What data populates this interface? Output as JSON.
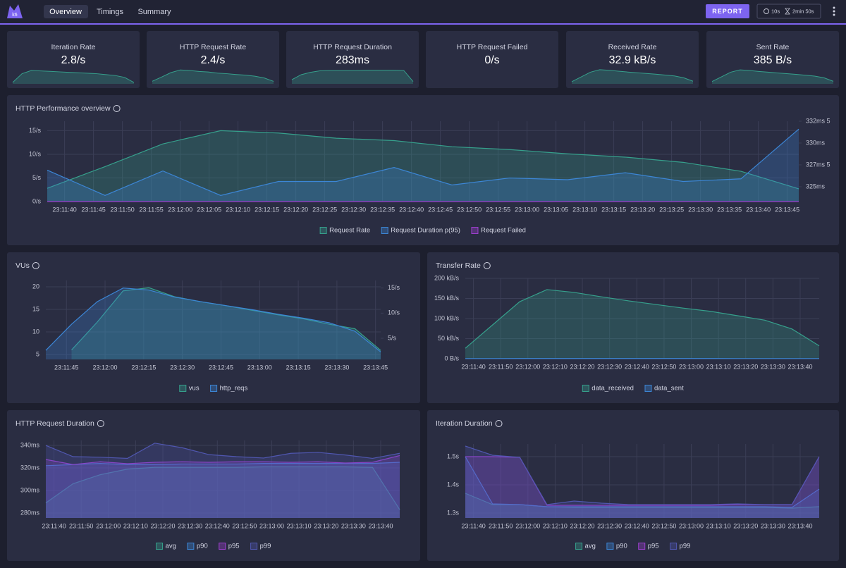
{
  "header": {
    "logo": "k6",
    "tabs": [
      "Overview",
      "Timings",
      "Summary"
    ],
    "report": "REPORT",
    "interval": "10s",
    "duration": "2min 50s"
  },
  "stats": [
    {
      "title": "Iteration Rate",
      "value": "2.8/s",
      "spark": [
        0.3,
        2.2,
        2.9,
        2.8,
        2.7,
        2.6,
        2.5,
        2.4,
        2.3,
        2.2,
        2.0,
        1.8,
        1.4,
        0.3
      ],
      "spark_ylim": [
        0,
        3.2
      ]
    },
    {
      "title": "HTTP Request Rate",
      "value": "2.4/s",
      "spark": [
        2.8,
        7.4,
        12.2,
        15,
        14.5,
        13.4,
        12.9,
        11.6,
        11,
        10.1,
        9.4,
        8.3,
        6.4,
        2.7
      ],
      "spark_ylim": [
        0,
        16
      ]
    },
    {
      "title": "HTTP Request Duration",
      "value": "283ms",
      "spark": [
        289,
        306,
        314,
        319,
        320,
        320,
        320,
        320,
        321,
        321,
        321,
        321,
        320,
        283
      ],
      "spark_ylim": [
        275,
        325
      ]
    },
    {
      "title": "HTTP Request Failed",
      "value": "0/s"
    },
    {
      "title": "Received Rate",
      "value": "32.9 kB/s",
      "spark": [
        26,
        84,
        142,
        172,
        165,
        154,
        144,
        135,
        126,
        118,
        107,
        96,
        74,
        32
      ],
      "spark_ylim": [
        0,
        180
      ]
    },
    {
      "title": "Sent Rate",
      "value": "385 B/s",
      "spark": [
        30,
        90,
        150,
        180,
        172,
        160,
        150,
        140,
        131,
        122,
        111,
        100,
        78,
        33
      ],
      "spark_ylim": [
        0,
        190
      ]
    }
  ],
  "charts": [
    {
      "type": "line",
      "title": "HTTP Performance overview",
      "grid": true,
      "x": [
        "23:11:37",
        "23:11:47",
        "23:11:57",
        "23:12:07",
        "23:12:17",
        "23:12:27",
        "23:12:37",
        "23:12:47",
        "23:12:57",
        "23:13:07",
        "23:13:17",
        "23:13:27",
        "23:13:37",
        "23:13:47"
      ],
      "xlim": [
        "23:11:37",
        "23:13:47"
      ],
      "xticks": [
        "23:11:40",
        "23:11:45",
        "23:11:50",
        "23:11:55",
        "23:12:00",
        "23:12:05",
        "23:12:10",
        "23:12:15",
        "23:12:20",
        "23:12:25",
        "23:12:30",
        "23:12:35",
        "23:12:40",
        "23:12:45",
        "23:12:50",
        "23:12:55",
        "23:13:00",
        "23:13:05",
        "23:13:10",
        "23:13:15",
        "23:13:20",
        "23:13:25",
        "23:13:30",
        "23:13:35",
        "23:13:40",
        "23:13:45"
      ],
      "ylim": [
        0,
        17
      ],
      "yticks": [
        {
          "value": 0,
          "label": "0/s"
        },
        {
          "value": 5,
          "label": "5/s"
        },
        {
          "value": 10,
          "label": "10/s"
        },
        {
          "value": 15,
          "label": "15/s"
        }
      ],
      "y2lim": [
        323.3,
        332.5
      ],
      "y2ticks": [
        {
          "value": 325,
          "label": "325ms"
        },
        {
          "value": 327.5,
          "label": "327ms 5"
        },
        {
          "value": 330,
          "label": "330ms"
        },
        {
          "value": 332.5,
          "label": "332ms 5"
        }
      ],
      "series": [
        {
          "name": "Request Rate",
          "color": "#36a08c",
          "values": [
            2.8,
            7.4,
            12.2,
            15,
            14.5,
            13.4,
            12.9,
            11.6,
            11,
            10.1,
            9.4,
            8.3,
            6.4,
            2.7
          ]
        },
        {
          "name": "Request Duration p(95)",
          "color": "#3c86d6",
          "axis": "y2",
          "values": [
            326.9,
            324,
            326.8,
            324,
            325.6,
            325.6,
            327.2,
            325.2,
            326,
            325.8,
            326.6,
            325.6,
            325.9,
            331.6
          ]
        },
        {
          "name": "Request Failed",
          "color": "#9d3fcf",
          "values": [
            0,
            0,
            0,
            0,
            0,
            0,
            0,
            0,
            0,
            0,
            0,
            0,
            0,
            0
          ]
        }
      ]
    },
    {
      "type": "line",
      "title": "VUs",
      "grid": true,
      "x": [
        "23:11:37",
        "23:11:47",
        "23:11:57",
        "23:12:07",
        "23:12:17",
        "23:12:27",
        "23:12:37",
        "23:12:47",
        "23:12:57",
        "23:13:07",
        "23:13:17",
        "23:13:27",
        "23:13:37",
        "23:13:47"
      ],
      "xlim": [
        "23:11:37",
        "23:13:47"
      ],
      "xticks": [
        "23:11:45",
        "23:12:00",
        "23:12:15",
        "23:12:30",
        "23:12:45",
        "23:13:00",
        "23:13:15",
        "23:13:30",
        "23:13:45"
      ],
      "ylim": [
        3.9,
        21.4
      ],
      "yticks": [
        5,
        10,
        15,
        20
      ],
      "y2lim": [
        0.8,
        16.5
      ],
      "y2ticks": [
        {
          "value": 5,
          "label": "5/s"
        },
        {
          "value": 10,
          "label": "10/s"
        },
        {
          "value": 15,
          "label": "15/s"
        }
      ],
      "series": [
        {
          "name": "vus",
          "color": "#36a08c",
          "values": [
            null,
            6,
            12.2,
            19.1,
            19.8,
            17.8,
            16.7,
            15.8,
            14.8,
            13.8,
            12.9,
            11.7,
            10.7,
            5.9
          ]
        },
        {
          "name": "http_reqs",
          "color": "#3c86d6",
          "axis": "y2",
          "values": [
            2.6,
            7.8,
            12.3,
            15,
            14.6,
            13.2,
            12.3,
            11.5,
            10.7,
            9.8,
            9,
            8.1,
            6.4,
            2.3
          ]
        }
      ]
    },
    {
      "type": "line",
      "title": "Transfer Rate",
      "grid": true,
      "x": [
        "23:11:37",
        "23:11:47",
        "23:11:57",
        "23:12:07",
        "23:12:17",
        "23:12:27",
        "23:12:37",
        "23:12:47",
        "23:12:57",
        "23:13:07",
        "23:13:17",
        "23:13:27",
        "23:13:37",
        "23:13:47"
      ],
      "xlim": [
        "23:11:37",
        "23:13:47"
      ],
      "xticks": [
        "23:11:40",
        "23:11:50",
        "23:12:00",
        "23:12:10",
        "23:12:20",
        "23:12:30",
        "23:12:40",
        "23:12:50",
        "23:13:00",
        "23:13:10",
        "23:13:20",
        "23:13:30",
        "23:13:40"
      ],
      "ylim": [
        0,
        200
      ],
      "yticks": [
        {
          "value": 0,
          "label": "0 B/s"
        },
        {
          "value": 50,
          "label": "50 kB/s"
        },
        {
          "value": 100,
          "label": "100 kB/s"
        },
        {
          "value": 150,
          "label": "150 kB/s"
        },
        {
          "value": 200,
          "label": "200 kB/s"
        }
      ],
      "series": [
        {
          "name": "data_received",
          "color": "#36a08c",
          "values": [
            26,
            84,
            142,
            172,
            165,
            154,
            144,
            135,
            126,
            118,
            107,
            96,
            74,
            32
          ]
        },
        {
          "name": "data_sent",
          "color": "#3c86d6",
          "values": [
            0.3,
            0.3,
            0.4,
            0.4,
            0.4,
            0.4,
            0.4,
            0.4,
            0.4,
            0.4,
            0.3,
            0.3,
            0.3,
            0.3
          ]
        }
      ]
    },
    {
      "type": "line",
      "title": "HTTP Request Duration",
      "grid": true,
      "x": [
        "23:11:37",
        "23:11:47",
        "23:11:57",
        "23:12:07",
        "23:12:17",
        "23:12:27",
        "23:12:37",
        "23:12:47",
        "23:12:57",
        "23:13:07",
        "23:13:17",
        "23:13:27",
        "23:13:37",
        "23:13:47"
      ],
      "xlim": [
        "23:11:37",
        "23:13:47"
      ],
      "xticks": [
        "23:11:40",
        "23:11:50",
        "23:12:00",
        "23:12:10",
        "23:12:20",
        "23:12:30",
        "23:12:40",
        "23:12:50",
        "23:13:00",
        "23:13:10",
        "23:13:20",
        "23:13:30",
        "23:13:40"
      ],
      "ylim": [
        275.6,
        344.4
      ],
      "yticks": [
        {
          "value": 280,
          "label": "280ms"
        },
        {
          "value": 300,
          "label": "300ms"
        },
        {
          "value": 320,
          "label": "320ms"
        },
        {
          "value": 340,
          "label": "340ms"
        }
      ],
      "series": [
        {
          "name": "avg",
          "color": "#36a08c",
          "values": [
            289,
            306,
            314,
            319,
            320.5,
            320.5,
            320.5,
            320.5,
            321,
            321,
            321,
            321,
            320.5,
            283
          ]
        },
        {
          "name": "p90",
          "color": "#3c86d6",
          "values": [
            322,
            323,
            324,
            323,
            323,
            323.5,
            323.5,
            323.5,
            324,
            324,
            324,
            324,
            324,
            325
          ]
        },
        {
          "name": "p95",
          "color": "#9d3fcf",
          "values": [
            327.5,
            323,
            325.5,
            323.8,
            325,
            325.5,
            325,
            325.5,
            325.5,
            325,
            325.5,
            324.4,
            325,
            331
          ]
        },
        {
          "name": "p99",
          "color": "#5057b0",
          "values": [
            340,
            330,
            329.5,
            328.5,
            342,
            338,
            331.8,
            330,
            328.8,
            333,
            333.8,
            331.5,
            328.5,
            333
          ]
        }
      ]
    },
    {
      "type": "line",
      "title": "Iteration Duration",
      "grid": true,
      "x": [
        "23:11:37",
        "23:11:47",
        "23:11:57",
        "23:12:07",
        "23:12:17",
        "23:12:27",
        "23:12:37",
        "23:12:47",
        "23:12:57",
        "23:13:07",
        "23:13:17",
        "23:13:27",
        "23:13:37",
        "23:13:47"
      ],
      "xlim": [
        "23:11:37",
        "23:13:47"
      ],
      "xticks": [
        "23:11:40",
        "23:11:50",
        "23:12:00",
        "23:12:10",
        "23:12:20",
        "23:12:30",
        "23:12:40",
        "23:12:50",
        "23:13:00",
        "23:13:10",
        "23:13:20",
        "23:13:30",
        "23:13:40"
      ],
      "ylim": [
        1.2825,
        1.545
      ],
      "yticks": [
        {
          "value": 1.3,
          "label": "1.3s"
        },
        {
          "value": 1.4,
          "label": "1.4s"
        },
        {
          "value": 1.5,
          "label": "1.5s"
        }
      ],
      "series": [
        {
          "name": "avg",
          "color": "#36a08c",
          "values": [
            1.37,
            1.33,
            1.33,
            1.3225,
            1.32,
            1.32,
            1.32,
            1.32,
            1.32,
            1.32,
            1.32,
            1.32,
            1.3175,
            1.3225
          ]
        },
        {
          "name": "p90",
          "color": "#3c86d6",
          "values": [
            1.5,
            1.3325,
            1.33,
            1.3225,
            1.3225,
            1.3225,
            1.3225,
            1.3225,
            1.3225,
            1.3225,
            1.3225,
            1.3225,
            1.32,
            1.385
          ]
        },
        {
          "name": "p95",
          "color": "#9d3fcf",
          "values": [
            1.5,
            1.5,
            1.4975,
            1.3275,
            1.3275,
            1.3275,
            1.3275,
            1.3275,
            1.3275,
            1.3275,
            1.33,
            1.33,
            1.33,
            1.5
          ]
        },
        {
          "name": "p99",
          "color": "#5057b0",
          "values": [
            1.5375,
            1.505,
            1.4975,
            1.33,
            1.3425,
            1.335,
            1.33,
            1.33,
            1.33,
            1.33,
            1.3325,
            1.33,
            1.33,
            1.5
          ]
        }
      ]
    }
  ]
}
